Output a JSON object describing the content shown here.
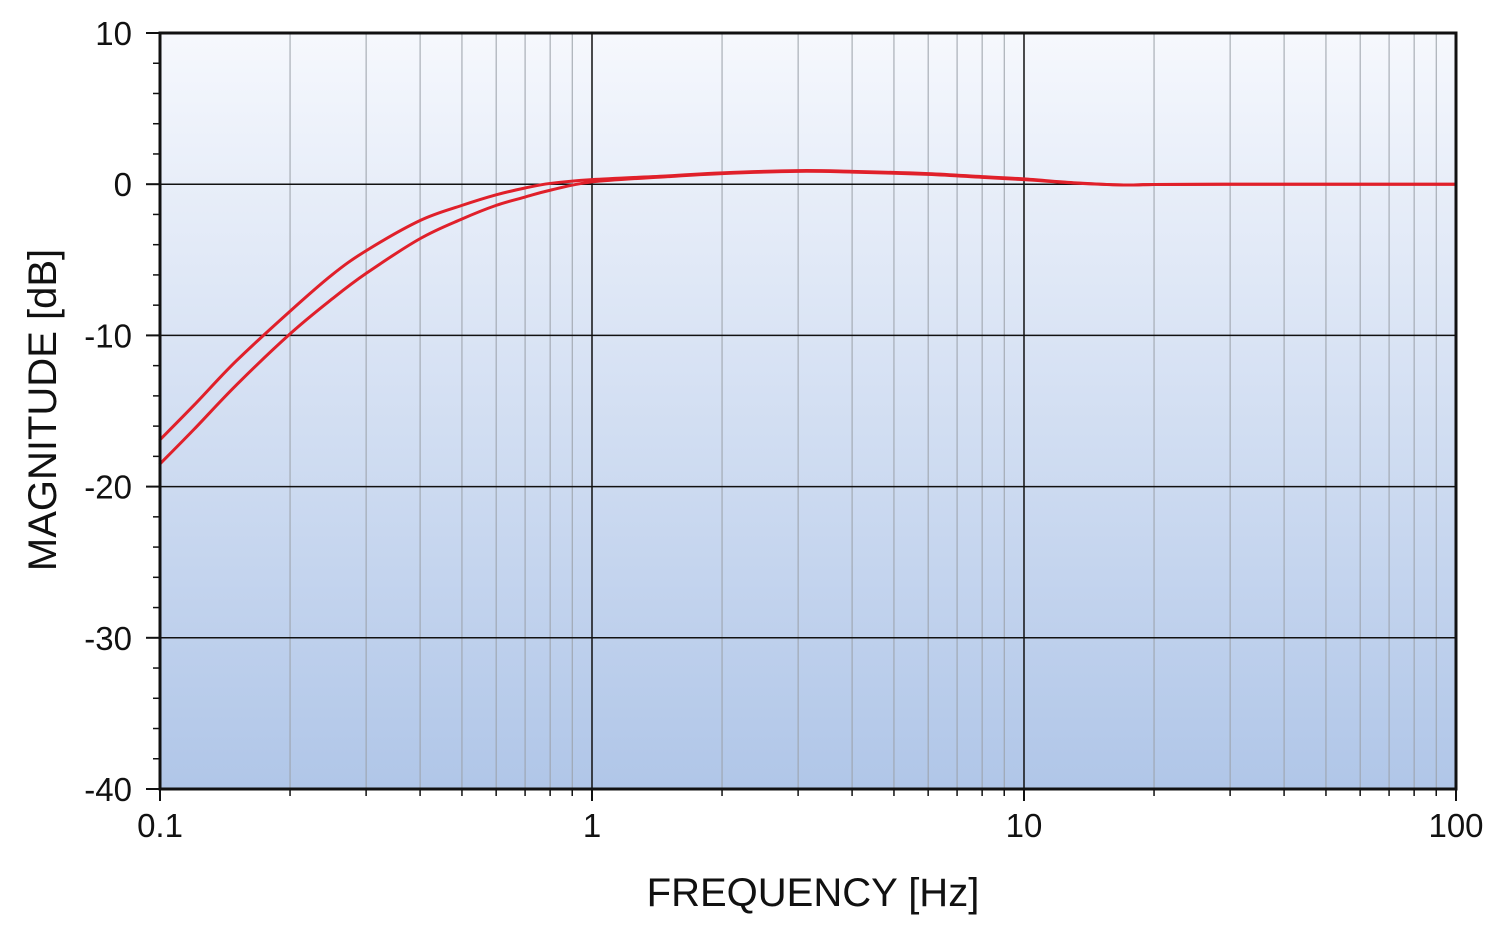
{
  "chart_data": {
    "type": "line",
    "title": "",
    "xlabel": "FREQUENCY [Hz]",
    "ylabel": "MAGNITUDE [dB]",
    "xscale": "log",
    "xlim": [
      0.1,
      100
    ],
    "ylim": [
      -40,
      10
    ],
    "xticks": [
      {
        "value": 0.1,
        "label": "0.1"
      },
      {
        "value": 1,
        "label": "1"
      },
      {
        "value": 10,
        "label": "10"
      },
      {
        "value": 100,
        "label": "100"
      }
    ],
    "yticks": [
      {
        "value": 10,
        "label": "10"
      },
      {
        "value": 0,
        "label": "0"
      },
      {
        "value": -10,
        "label": "-10"
      },
      {
        "value": -20,
        "label": "-20"
      },
      {
        "value": -30,
        "label": "-30"
      },
      {
        "value": -40,
        "label": "-40"
      }
    ],
    "grid": true,
    "legend": "none",
    "colors": {
      "series": "#e0202a",
      "background_top": "#f6f8fd",
      "background_bottom": "#b0c6e8",
      "major_grid": "#111111",
      "minor_grid": "#9aa0a8"
    },
    "series": [
      {
        "x": [
          0.1,
          0.12,
          0.15,
          0.2,
          0.25,
          0.3,
          0.4,
          0.5,
          0.6,
          0.7,
          0.8,
          1,
          1.5,
          2,
          3,
          4,
          6,
          8,
          10,
          13,
          17,
          20,
          30,
          50,
          100
        ],
        "values": [
          -16.9,
          -14.6,
          -11.7,
          -8.4,
          -6.0,
          -4.4,
          -2.4,
          -1.4,
          -0.7,
          -0.25,
          0.05,
          0.3,
          0.55,
          0.75,
          0.9,
          0.85,
          0.7,
          0.5,
          0.35,
          0.1,
          -0.05,
          -0.02,
          0.0,
          0.0,
          0.0
        ]
      },
      {
        "x": [
          0.1,
          0.12,
          0.15,
          0.2,
          0.25,
          0.3,
          0.4,
          0.5,
          0.6,
          0.7,
          0.8,
          1,
          1.5,
          2,
          3,
          4,
          6,
          8,
          10,
          13,
          17,
          20,
          30,
          50,
          100
        ],
        "values": [
          -18.5,
          -16.2,
          -13.3,
          -9.9,
          -7.6,
          -5.9,
          -3.6,
          -2.3,
          -1.4,
          -0.85,
          -0.4,
          0.15,
          0.5,
          0.7,
          0.85,
          0.8,
          0.65,
          0.45,
          0.3,
          0.08,
          -0.05,
          -0.02,
          0.0,
          0.0,
          0.0
        ]
      }
    ]
  }
}
